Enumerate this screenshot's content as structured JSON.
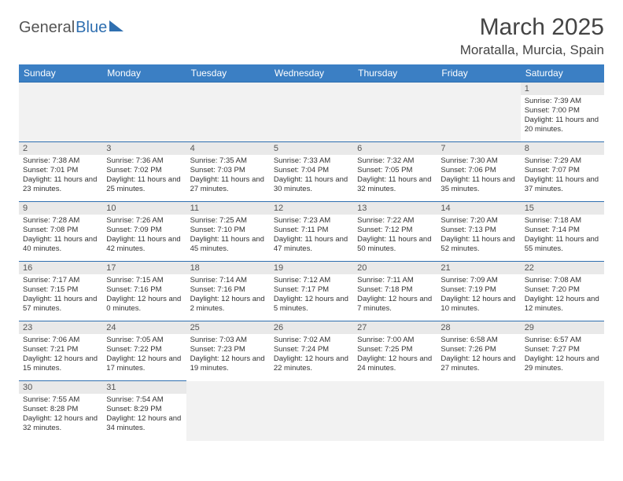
{
  "logo": {
    "part1": "General",
    "part2": "Blue"
  },
  "title": "March 2025",
  "location": "Moratalla, Murcia, Spain",
  "colors": {
    "header_bg": "#3b7fc4",
    "header_text": "#ffffff",
    "border": "#2f6fb0",
    "daynum_bg": "#e9e9e9",
    "text": "#333333"
  },
  "weekdays": [
    "Sunday",
    "Monday",
    "Tuesday",
    "Wednesday",
    "Thursday",
    "Friday",
    "Saturday"
  ],
  "weeks": [
    [
      null,
      null,
      null,
      null,
      null,
      null,
      {
        "n": "1",
        "sr": "Sunrise: 7:39 AM",
        "ss": "Sunset: 7:00 PM",
        "dl": "Daylight: 11 hours and 20 minutes."
      }
    ],
    [
      {
        "n": "2",
        "sr": "Sunrise: 7:38 AM",
        "ss": "Sunset: 7:01 PM",
        "dl": "Daylight: 11 hours and 23 minutes."
      },
      {
        "n": "3",
        "sr": "Sunrise: 7:36 AM",
        "ss": "Sunset: 7:02 PM",
        "dl": "Daylight: 11 hours and 25 minutes."
      },
      {
        "n": "4",
        "sr": "Sunrise: 7:35 AM",
        "ss": "Sunset: 7:03 PM",
        "dl": "Daylight: 11 hours and 27 minutes."
      },
      {
        "n": "5",
        "sr": "Sunrise: 7:33 AM",
        "ss": "Sunset: 7:04 PM",
        "dl": "Daylight: 11 hours and 30 minutes."
      },
      {
        "n": "6",
        "sr": "Sunrise: 7:32 AM",
        "ss": "Sunset: 7:05 PM",
        "dl": "Daylight: 11 hours and 32 minutes."
      },
      {
        "n": "7",
        "sr": "Sunrise: 7:30 AM",
        "ss": "Sunset: 7:06 PM",
        "dl": "Daylight: 11 hours and 35 minutes."
      },
      {
        "n": "8",
        "sr": "Sunrise: 7:29 AM",
        "ss": "Sunset: 7:07 PM",
        "dl": "Daylight: 11 hours and 37 minutes."
      }
    ],
    [
      {
        "n": "9",
        "sr": "Sunrise: 7:28 AM",
        "ss": "Sunset: 7:08 PM",
        "dl": "Daylight: 11 hours and 40 minutes."
      },
      {
        "n": "10",
        "sr": "Sunrise: 7:26 AM",
        "ss": "Sunset: 7:09 PM",
        "dl": "Daylight: 11 hours and 42 minutes."
      },
      {
        "n": "11",
        "sr": "Sunrise: 7:25 AM",
        "ss": "Sunset: 7:10 PM",
        "dl": "Daylight: 11 hours and 45 minutes."
      },
      {
        "n": "12",
        "sr": "Sunrise: 7:23 AM",
        "ss": "Sunset: 7:11 PM",
        "dl": "Daylight: 11 hours and 47 minutes."
      },
      {
        "n": "13",
        "sr": "Sunrise: 7:22 AM",
        "ss": "Sunset: 7:12 PM",
        "dl": "Daylight: 11 hours and 50 minutes."
      },
      {
        "n": "14",
        "sr": "Sunrise: 7:20 AM",
        "ss": "Sunset: 7:13 PM",
        "dl": "Daylight: 11 hours and 52 minutes."
      },
      {
        "n": "15",
        "sr": "Sunrise: 7:18 AM",
        "ss": "Sunset: 7:14 PM",
        "dl": "Daylight: 11 hours and 55 minutes."
      }
    ],
    [
      {
        "n": "16",
        "sr": "Sunrise: 7:17 AM",
        "ss": "Sunset: 7:15 PM",
        "dl": "Daylight: 11 hours and 57 minutes."
      },
      {
        "n": "17",
        "sr": "Sunrise: 7:15 AM",
        "ss": "Sunset: 7:16 PM",
        "dl": "Daylight: 12 hours and 0 minutes."
      },
      {
        "n": "18",
        "sr": "Sunrise: 7:14 AM",
        "ss": "Sunset: 7:16 PM",
        "dl": "Daylight: 12 hours and 2 minutes."
      },
      {
        "n": "19",
        "sr": "Sunrise: 7:12 AM",
        "ss": "Sunset: 7:17 PM",
        "dl": "Daylight: 12 hours and 5 minutes."
      },
      {
        "n": "20",
        "sr": "Sunrise: 7:11 AM",
        "ss": "Sunset: 7:18 PM",
        "dl": "Daylight: 12 hours and 7 minutes."
      },
      {
        "n": "21",
        "sr": "Sunrise: 7:09 AM",
        "ss": "Sunset: 7:19 PM",
        "dl": "Daylight: 12 hours and 10 minutes."
      },
      {
        "n": "22",
        "sr": "Sunrise: 7:08 AM",
        "ss": "Sunset: 7:20 PM",
        "dl": "Daylight: 12 hours and 12 minutes."
      }
    ],
    [
      {
        "n": "23",
        "sr": "Sunrise: 7:06 AM",
        "ss": "Sunset: 7:21 PM",
        "dl": "Daylight: 12 hours and 15 minutes."
      },
      {
        "n": "24",
        "sr": "Sunrise: 7:05 AM",
        "ss": "Sunset: 7:22 PM",
        "dl": "Daylight: 12 hours and 17 minutes."
      },
      {
        "n": "25",
        "sr": "Sunrise: 7:03 AM",
        "ss": "Sunset: 7:23 PM",
        "dl": "Daylight: 12 hours and 19 minutes."
      },
      {
        "n": "26",
        "sr": "Sunrise: 7:02 AM",
        "ss": "Sunset: 7:24 PM",
        "dl": "Daylight: 12 hours and 22 minutes."
      },
      {
        "n": "27",
        "sr": "Sunrise: 7:00 AM",
        "ss": "Sunset: 7:25 PM",
        "dl": "Daylight: 12 hours and 24 minutes."
      },
      {
        "n": "28",
        "sr": "Sunrise: 6:58 AM",
        "ss": "Sunset: 7:26 PM",
        "dl": "Daylight: 12 hours and 27 minutes."
      },
      {
        "n": "29",
        "sr": "Sunrise: 6:57 AM",
        "ss": "Sunset: 7:27 PM",
        "dl": "Daylight: 12 hours and 29 minutes."
      }
    ],
    [
      {
        "n": "30",
        "sr": "Sunrise: 7:55 AM",
        "ss": "Sunset: 8:28 PM",
        "dl": "Daylight: 12 hours and 32 minutes."
      },
      {
        "n": "31",
        "sr": "Sunrise: 7:54 AM",
        "ss": "Sunset: 8:29 PM",
        "dl": "Daylight: 12 hours and 34 minutes."
      },
      null,
      null,
      null,
      null,
      null
    ]
  ]
}
